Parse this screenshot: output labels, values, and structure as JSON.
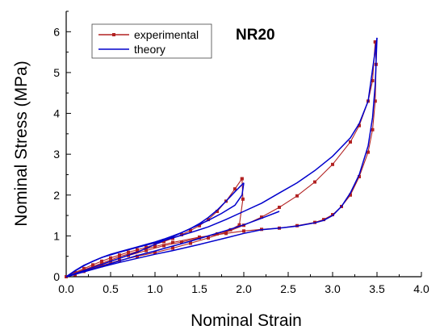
{
  "chart_data": {
    "type": "line",
    "title": "NR20",
    "xlabel": "Nominal Strain",
    "ylabel": "Nominal Stress (MPa)",
    "xlim": [
      0,
      4
    ],
    "ylim": [
      0,
      6.5
    ],
    "x_ticks": [
      "0.0",
      "0.5",
      "1.0",
      "1.5",
      "2.0",
      "2.5",
      "3.0",
      "3.5",
      "4.0"
    ],
    "y_ticks": [
      "0",
      "1",
      "2",
      "3",
      "4",
      "5",
      "6"
    ],
    "legend_position": "top-left",
    "grid": false,
    "series": [
      {
        "name": "experimental",
        "color": "#b22222",
        "marker": "square",
        "segments": [
          [
            [
              0,
              0
            ],
            [
              0.1,
              0.1
            ],
            [
              0.2,
              0.2
            ],
            [
              0.3,
              0.29
            ],
            [
              0.4,
              0.38
            ],
            [
              0.5,
              0.46
            ],
            [
              0.6,
              0.53
            ],
            [
              0.7,
              0.6
            ],
            [
              0.8,
              0.66
            ],
            [
              0.9,
              0.72
            ],
            [
              1.0,
              0.79
            ],
            [
              1.1,
              0.86
            ],
            [
              1.2,
              0.94
            ],
            [
              1.3,
              1.03
            ],
            [
              1.4,
              1.13
            ],
            [
              1.5,
              1.25
            ],
            [
              1.6,
              1.4
            ],
            [
              1.7,
              1.6
            ],
            [
              1.8,
              1.85
            ],
            [
              1.9,
              2.15
            ],
            [
              1.98,
              2.4
            ]
          ],
          [
            [
              1.98,
              2.4
            ],
            [
              1.99,
              1.9
            ],
            [
              1.95,
              1.27
            ],
            [
              1.85,
              1.15
            ],
            [
              1.7,
              1.05
            ],
            [
              1.5,
              0.95
            ],
            [
              1.3,
              0.85
            ],
            [
              1.1,
              0.76
            ],
            [
              0.9,
              0.64
            ],
            [
              0.7,
              0.52
            ],
            [
              0.5,
              0.38
            ],
            [
              0.3,
              0.22
            ],
            [
              0.1,
              0.05
            ],
            [
              0,
              0
            ]
          ],
          [
            [
              0,
              0
            ],
            [
              0.2,
              0.13
            ],
            [
              0.4,
              0.27
            ],
            [
              0.6,
              0.4
            ],
            [
              0.8,
              0.5
            ],
            [
              1.0,
              0.59
            ],
            [
              1.2,
              0.7
            ],
            [
              1.4,
              0.82
            ],
            [
              1.6,
              0.95
            ],
            [
              1.8,
              1.09
            ],
            [
              2.0,
              1.26
            ],
            [
              2.2,
              1.46
            ],
            [
              2.4,
              1.7
            ],
            [
              2.6,
              1.98
            ],
            [
              2.8,
              2.32
            ],
            [
              3.0,
              2.75
            ],
            [
              3.2,
              3.3
            ],
            [
              3.3,
              3.7
            ],
            [
              3.4,
              4.3
            ],
            [
              3.45,
              4.8
            ],
            [
              3.48,
              5.75
            ]
          ],
          [
            [
              3.48,
              5.75
            ],
            [
              3.49,
              5.2
            ],
            [
              3.48,
              4.3
            ],
            [
              3.45,
              3.6
            ],
            [
              3.4,
              3.05
            ],
            [
              3.3,
              2.45
            ],
            [
              3.2,
              2.0
            ],
            [
              3.1,
              1.72
            ],
            [
              3.0,
              1.52
            ],
            [
              2.9,
              1.4
            ],
            [
              2.8,
              1.33
            ],
            [
              2.6,
              1.25
            ],
            [
              2.4,
              1.19
            ],
            [
              2.2,
              1.16
            ],
            [
              2.0,
              1.12
            ],
            [
              1.8,
              1.06
            ],
            [
              1.5,
              0.97
            ],
            [
              1.2,
              0.84
            ],
            [
              1.0,
              0.74
            ],
            [
              0.8,
              0.62
            ],
            [
              0.6,
              0.49
            ],
            [
              0.4,
              0.33
            ],
            [
              0.2,
              0.17
            ],
            [
              0.0,
              0.0
            ]
          ]
        ]
      },
      {
        "name": "theory",
        "color": "#0000cc",
        "marker": "none",
        "segments": [
          [
            [
              0,
              0
            ],
            [
              0.1,
              0.14
            ],
            [
              0.2,
              0.27
            ],
            [
              0.3,
              0.38
            ],
            [
              0.4,
              0.47
            ],
            [
              0.5,
              0.55
            ],
            [
              0.6,
              0.61
            ],
            [
              0.7,
              0.67
            ],
            [
              0.8,
              0.73
            ],
            [
              0.9,
              0.79
            ],
            [
              1.0,
              0.85
            ],
            [
              1.1,
              0.92
            ],
            [
              1.2,
              1.0
            ],
            [
              1.3,
              1.08
            ],
            [
              1.4,
              1.18
            ],
            [
              1.5,
              1.3
            ],
            [
              1.6,
              1.45
            ],
            [
              1.7,
              1.63
            ],
            [
              1.8,
              1.85
            ],
            [
              1.9,
              2.08
            ],
            [
              2.0,
              2.3
            ]
          ],
          [
            [
              2.0,
              2.3
            ],
            [
              1.98,
              2.0
            ],
            [
              1.9,
              1.75
            ],
            [
              1.75,
              1.55
            ],
            [
              1.6,
              1.38
            ],
            [
              1.4,
              1.18
            ],
            [
              1.2,
              0.98
            ],
            [
              1.0,
              0.79
            ],
            [
              0.8,
              0.6
            ],
            [
              0.6,
              0.45
            ],
            [
              0.4,
              0.3
            ],
            [
              0.2,
              0.15
            ],
            [
              0,
              0
            ]
          ],
          [
            [
              0,
              0
            ],
            [
              0.1,
              0.15
            ],
            [
              0.2,
              0.28
            ],
            [
              0.4,
              0.47
            ],
            [
              0.6,
              0.6
            ],
            [
              0.8,
              0.72
            ],
            [
              1.0,
              0.83
            ],
            [
              1.2,
              0.95
            ],
            [
              1.4,
              1.08
            ],
            [
              1.6,
              1.22
            ],
            [
              1.8,
              1.4
            ],
            [
              2.0,
              1.6
            ],
            [
              2.2,
              1.8
            ],
            [
              2.4,
              2.05
            ],
            [
              2.6,
              2.3
            ],
            [
              2.8,
              2.6
            ],
            [
              3.0,
              2.95
            ],
            [
              3.2,
              3.4
            ],
            [
              3.3,
              3.75
            ],
            [
              3.4,
              4.3
            ],
            [
              3.5,
              5.85
            ]
          ],
          [
            [
              3.5,
              5.85
            ],
            [
              3.48,
              4.7
            ],
            [
              3.45,
              3.9
            ],
            [
              3.4,
              3.2
            ],
            [
              3.3,
              2.5
            ],
            [
              3.2,
              2.05
            ],
            [
              3.1,
              1.72
            ],
            [
              3.0,
              1.5
            ],
            [
              2.9,
              1.38
            ],
            [
              2.8,
              1.32
            ],
            [
              2.6,
              1.24
            ],
            [
              2.4,
              1.19
            ],
            [
              2.2,
              1.15
            ],
            [
              2.0,
              1.06
            ],
            [
              1.8,
              0.95
            ],
            [
              1.5,
              0.79
            ],
            [
              1.2,
              0.64
            ],
            [
              1.0,
              0.55
            ],
            [
              0.8,
              0.45
            ],
            [
              0.6,
              0.35
            ],
            [
              0.4,
              0.24
            ],
            [
              0.2,
              0.12
            ],
            [
              0,
              0
            ]
          ],
          [
            [
              0,
              0
            ],
            [
              0.2,
              0.12
            ],
            [
              0.4,
              0.25
            ],
            [
              0.6,
              0.39
            ],
            [
              0.8,
              0.52
            ],
            [
              1.0,
              0.63
            ],
            [
              1.2,
              0.75
            ],
            [
              1.4,
              0.87
            ],
            [
              1.6,
              1.0
            ],
            [
              1.8,
              1.13
            ],
            [
              2.0,
              1.27
            ],
            [
              2.2,
              1.43
            ],
            [
              2.4,
              1.6
            ]
          ]
        ]
      }
    ]
  }
}
